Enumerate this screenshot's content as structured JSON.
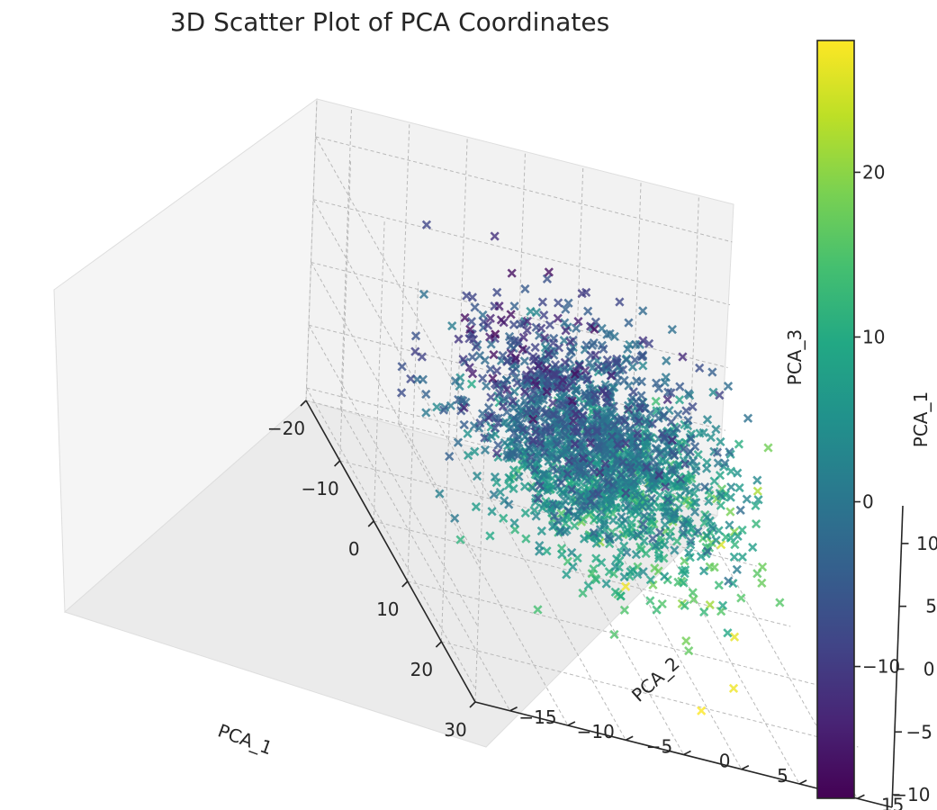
{
  "chart_data": {
    "type": "scatter",
    "projection": "3d",
    "marker": "x",
    "title": "3D Scatter Plot of PCA Coordinates",
    "xlabel": "PCA_1",
    "ylabel": "PCA_2",
    "zlabel": "PCA_3",
    "xlim": [
      -20,
      30
    ],
    "ylim": [
      -18,
      18
    ],
    "zlim": [
      -11,
      13
    ],
    "x_ticks": [
      -20,
      -10,
      0,
      10,
      20,
      30
    ],
    "x_tick_labels": [
      "−20",
      "−10",
      "0",
      "10",
      "20",
      "30"
    ],
    "y_ticks": [
      -15,
      -10,
      -5,
      0,
      5,
      10,
      15
    ],
    "y_tick_labels": [
      "−15",
      "−10",
      "−5",
      "0",
      "5",
      "10",
      "15"
    ],
    "z_ticks": [
      -10,
      -5,
      0,
      5,
      10
    ],
    "z_tick_labels": [
      "−10",
      "−5",
      "0",
      "5",
      "10"
    ],
    "grid": true,
    "colormap": "viridis",
    "color_by": "PCA_1",
    "colorbar": {
      "label": "PCA_1",
      "range": [
        -18,
        28
      ],
      "ticks": [
        -10,
        0,
        10,
        20
      ],
      "tick_labels": [
        "−10",
        "0",
        "10",
        "20"
      ]
    },
    "cluster_summary": {
      "point_count_shown": 1800,
      "center": [
        2,
        0,
        0
      ],
      "spread": [
        7,
        5,
        3.5
      ]
    },
    "outliers": [
      {
        "x": -20,
        "y": -2,
        "z": -2
      },
      {
        "x": 28,
        "y": 2,
        "z": -8
      },
      {
        "x": 27,
        "y": 5,
        "z": -6
      },
      {
        "x": 18,
        "y": 10,
        "z": 10
      },
      {
        "x": 22,
        "y": 8,
        "z": 8
      },
      {
        "x": 14,
        "y": -8,
        "z": -9
      }
    ]
  }
}
